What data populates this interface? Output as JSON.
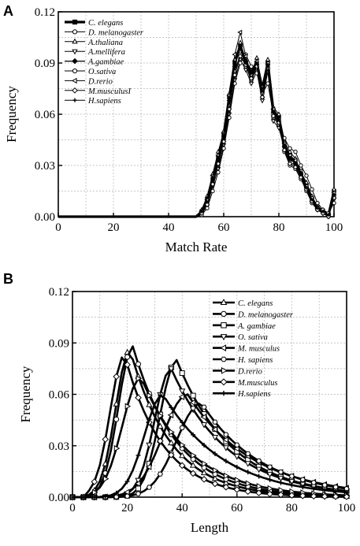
{
  "chart_data": [
    {
      "type": "line",
      "panel": "A",
      "xlabel": "Match Rate",
      "ylabel": "Frequency",
      "xlim": [
        0,
        100
      ],
      "ylim": [
        0,
        0.12
      ],
      "xticks": [
        "0",
        "20",
        "40",
        "60",
        "80",
        "100"
      ],
      "yticks": [
        "0.00",
        "0.03",
        "0.06",
        "0.09",
        "0.12"
      ],
      "grid": true,
      "legend_position": "top-left",
      "x": [
        0,
        10,
        20,
        30,
        40,
        50,
        52,
        54,
        56,
        58,
        60,
        62,
        64,
        66,
        68,
        70,
        72,
        74,
        76,
        78,
        80,
        82,
        84,
        86,
        88,
        90,
        92,
        94,
        96,
        98,
        100
      ],
      "series": [
        {
          "name": "C. elegans",
          "marker": "square-filled",
          "width": 3.2,
          "values": [
            0,
            0,
            0,
            0,
            0,
            0,
            0.003,
            0.01,
            0.022,
            0.035,
            0.048,
            0.07,
            0.09,
            0.1,
            0.09,
            0.085,
            0.09,
            0.075,
            0.09,
            0.062,
            0.058,
            0.042,
            0.035,
            0.032,
            0.025,
            0.018,
            0.01,
            0.005,
            0.003,
            0.001,
            0.015
          ]
        },
        {
          "name": "D. melanogaster",
          "marker": "circle-open",
          "width": 1,
          "values": [
            0,
            0,
            0,
            0,
            0,
            0,
            0.002,
            0.008,
            0.02,
            0.03,
            0.045,
            0.065,
            0.085,
            0.095,
            0.088,
            0.08,
            0.087,
            0.07,
            0.088,
            0.058,
            0.054,
            0.038,
            0.03,
            0.028,
            0.022,
            0.015,
            0.008,
            0.004,
            0.002,
            0,
            0.012
          ]
        },
        {
          "name": "A.thaliana",
          "marker": "triangle-up-open",
          "width": 1,
          "values": [
            0,
            0,
            0,
            0,
            0,
            0,
            0.004,
            0.012,
            0.025,
            0.038,
            0.05,
            0.072,
            0.092,
            0.102,
            0.092,
            0.084,
            0.093,
            0.076,
            0.092,
            0.064,
            0.06,
            0.044,
            0.038,
            0.034,
            0.026,
            0.02,
            0.012,
            0.006,
            0.004,
            0.002,
            0.016
          ]
        },
        {
          "name": "A.mellifera",
          "marker": "triangle-down-open",
          "width": 1,
          "values": [
            0,
            0,
            0,
            0,
            0,
            0,
            0.002,
            0.006,
            0.018,
            0.028,
            0.042,
            0.06,
            0.08,
            0.092,
            0.086,
            0.078,
            0.085,
            0.068,
            0.085,
            0.056,
            0.052,
            0.04,
            0.032,
            0.03,
            0.024,
            0.016,
            0.01,
            0.004,
            0.002,
            0.001,
            0.01
          ]
        },
        {
          "name": "A.gambiae",
          "marker": "diamond-filled",
          "width": 1.3,
          "values": [
            0,
            0,
            0,
            0,
            0,
            0,
            0.003,
            0.009,
            0.02,
            0.033,
            0.047,
            0.068,
            0.088,
            0.1,
            0.091,
            0.082,
            0.089,
            0.073,
            0.089,
            0.061,
            0.056,
            0.041,
            0.034,
            0.031,
            0.025,
            0.017,
            0.009,
            0.005,
            0.003,
            0.001,
            0.013
          ]
        },
        {
          "name": "O.sativa",
          "marker": "circle-open",
          "width": 1,
          "values": [
            0,
            0,
            0,
            0,
            0,
            0,
            0.001,
            0.005,
            0.015,
            0.026,
            0.04,
            0.058,
            0.078,
            0.09,
            0.095,
            0.088,
            0.084,
            0.072,
            0.078,
            0.06,
            0.055,
            0.046,
            0.04,
            0.038,
            0.03,
            0.024,
            0.016,
            0.008,
            0.004,
            0.002,
            0.008
          ]
        },
        {
          "name": "D.rerio",
          "marker": "triangle-left-open",
          "width": 1,
          "values": [
            0,
            0,
            0,
            0,
            0,
            0,
            0.003,
            0.01,
            0.024,
            0.036,
            0.049,
            0.071,
            0.095,
            0.108,
            0.094,
            0.083,
            0.091,
            0.074,
            0.09,
            0.063,
            0.057,
            0.043,
            0.036,
            0.033,
            0.027,
            0.018,
            0.011,
            0.005,
            0.003,
            0.001,
            0.014
          ]
        },
        {
          "name": "M.musculusI",
          "marker": "diamond-open",
          "width": 1,
          "values": [
            0,
            0,
            0,
            0,
            0,
            0,
            0.002,
            0.007,
            0.019,
            0.031,
            0.044,
            0.063,
            0.083,
            0.094,
            0.089,
            0.081,
            0.088,
            0.07,
            0.087,
            0.059,
            0.055,
            0.039,
            0.031,
            0.029,
            0.023,
            0.016,
            0.009,
            0.004,
            0.002,
            0,
            0.011
          ]
        },
        {
          "name": "H.sapiens",
          "marker": "plus",
          "width": 1,
          "values": [
            0,
            0,
            0,
            0,
            0,
            0,
            0.003,
            0.011,
            0.023,
            0.034,
            0.048,
            0.069,
            0.089,
            0.099,
            0.09,
            0.084,
            0.09,
            0.074,
            0.089,
            0.061,
            0.057,
            0.042,
            0.034,
            0.031,
            0.026,
            0.017,
            0.01,
            0.005,
            0.003,
            0.001,
            0.013
          ]
        }
      ]
    },
    {
      "type": "line",
      "panel": "B",
      "xlabel": "Length",
      "ylabel": "Frequency",
      "xlim": [
        0,
        100
      ],
      "ylim": [
        0,
        0.12
      ],
      "xticks": [
        "0",
        "20",
        "40",
        "60",
        "80",
        "100"
      ],
      "yticks": [
        "0.00",
        "0.03",
        "0.06",
        "0.09",
        "0.12"
      ],
      "grid": true,
      "legend_position": "top-right",
      "series": [
        {
          "name": "C. elegans",
          "marker": "triangle-up-open",
          "width": 2.6,
          "peak": 21,
          "height": 0.086,
          "wl": 7,
          "wr": 15
        },
        {
          "name": "D. melanogaster",
          "marker": "circle-open",
          "width": 2.6,
          "peak": 22,
          "height": 0.088,
          "wl": 7,
          "wr": 16
        },
        {
          "name": "A. gambiae",
          "marker": "square-open",
          "width": 2.6,
          "peak": 38,
          "height": 0.08,
          "wl": 8,
          "wr": 20
        },
        {
          "name": "O. sativa",
          "marker": "triangle-down-open",
          "width": 2.6,
          "peak": 36,
          "height": 0.075,
          "wl": 8,
          "wr": 21
        },
        {
          "name": "M. musculus",
          "marker": "triangle-left-open",
          "width": 2.6,
          "peak": 42,
          "height": 0.06,
          "wl": 12,
          "wr": 24
        },
        {
          "name": "H. sapiens",
          "marker": "hexagon-open",
          "width": 2.6,
          "peak": 47,
          "height": 0.055,
          "wl": 12,
          "wr": 22
        },
        {
          "name": "D.rerio",
          "marker": "triangle-right-open",
          "width": 2.6,
          "peak": 25,
          "height": 0.07,
          "wl": 9,
          "wr": 18
        },
        {
          "name": "M.musculus",
          "marker": "diamond-open",
          "width": 2.6,
          "peak": 19,
          "height": 0.083,
          "wl": 7,
          "wr": 14
        },
        {
          "name": "H.sapiens",
          "marker": "plus",
          "width": 2.6,
          "peak": 33,
          "height": 0.06,
          "wl": 9,
          "wr": 22
        }
      ]
    }
  ],
  "labels": {
    "panel_a": "A",
    "panel_b": "B"
  }
}
